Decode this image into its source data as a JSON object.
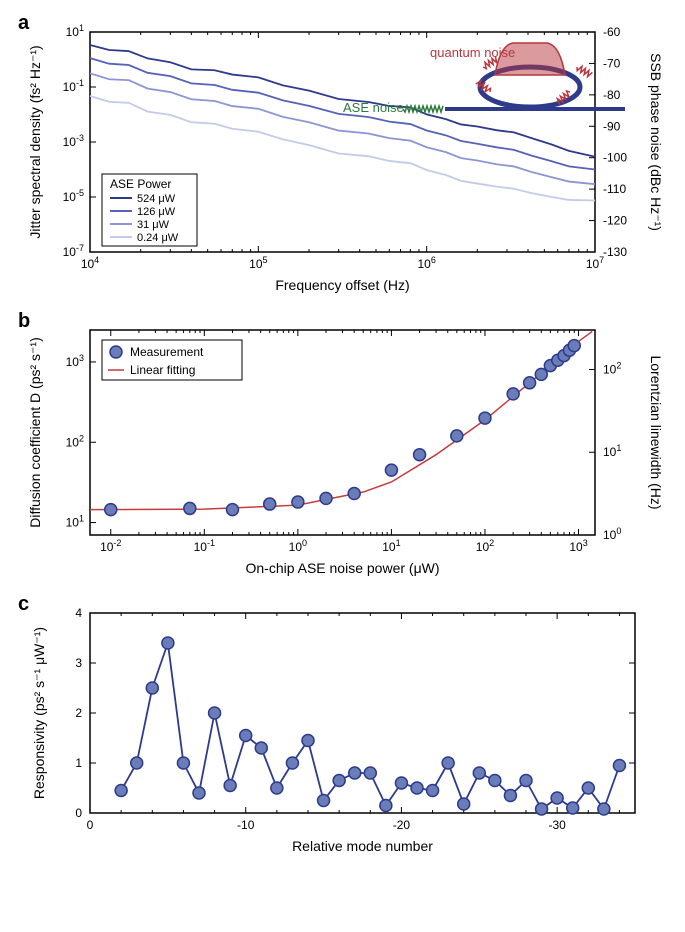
{
  "panel_a": {
    "label": "a",
    "type": "line",
    "xlabel": "Frequency offset (Hz)",
    "ylabel_left": "Jitter spectral density (fs² Hz⁻¹)",
    "ylabel_right": "SSB phase noise  (dBc Hz⁻¹)",
    "xlim": [
      10000.0,
      10000000.0
    ],
    "ylim_left": [
      1e-07,
      10
    ],
    "xscale": "log",
    "yscale": "log",
    "xticks": [
      10000.0,
      100000.0,
      1000000.0,
      10000000.0
    ],
    "yticks_left": [
      1e-07,
      1e-05,
      0.001,
      0.1,
      10
    ],
    "yticks_right": [
      -130,
      -120,
      -110,
      -100,
      -90,
      -80,
      -70,
      -60
    ],
    "legend_title": "ASE Power",
    "legend_position": "lower-left",
    "series": [
      {
        "label": "524 μW",
        "color": "#2e3a8c",
        "data": [
          [
            10000.0,
            3.0
          ],
          [
            13000.0,
            2.2
          ],
          [
            17000.0,
            1.6
          ],
          [
            22000.0,
            1.2
          ],
          [
            30000.0,
            0.8
          ],
          [
            40000.0,
            0.55
          ],
          [
            55000.0,
            0.38
          ],
          [
            70000.0,
            0.28
          ],
          [
            100000.0,
            0.18
          ],
          [
            140000.0,
            0.12
          ],
          [
            200000.0,
            0.075
          ],
          [
            300000.0,
            0.045
          ],
          [
            450000.0,
            0.028
          ],
          [
            600000.0,
            0.02
          ],
          [
            800000.0,
            0.015
          ],
          [
            1000000.0,
            0.01
          ],
          [
            1300000.0,
            0.007
          ],
          [
            1600000.0,
            0.0052
          ],
          [
            2000000.0,
            0.0038
          ],
          [
            2600000.0,
            0.0026
          ],
          [
            3300000.0,
            0.0019
          ],
          [
            4200000.0,
            0.0013
          ],
          [
            5500000.0,
            0.00085
          ],
          [
            7000000.0,
            0.00055
          ],
          [
            10000000.0,
            0.00032
          ]
        ]
      },
      {
        "label": "126 μW",
        "color": "#5662b8",
        "data": [
          [
            10000.0,
            1.0
          ],
          [
            13000.0,
            0.7
          ],
          [
            17000.0,
            0.5
          ],
          [
            22000.0,
            0.36
          ],
          [
            30000.0,
            0.25
          ],
          [
            40000.0,
            0.17
          ],
          [
            55000.0,
            0.11
          ],
          [
            70000.0,
            0.078
          ],
          [
            100000.0,
            0.05
          ],
          [
            140000.0,
            0.034
          ],
          [
            200000.0,
            0.021
          ],
          [
            300000.0,
            0.013
          ],
          [
            450000.0,
            0.008
          ],
          [
            600000.0,
            0.0054
          ],
          [
            800000.0,
            0.0037
          ],
          [
            1000000.0,
            0.0026
          ],
          [
            1300000.0,
            0.0018
          ],
          [
            1600000.0,
            0.0013
          ],
          [
            2000000.0,
            0.0009
          ],
          [
            2600000.0,
            0.00062
          ],
          [
            3300000.0,
            0.00044
          ],
          [
            4200000.0,
            0.0003
          ],
          [
            5500000.0,
            0.00021
          ],
          [
            7000000.0,
            0.00015
          ],
          [
            10000000.0,
            0.00011
          ]
        ]
      },
      {
        "label": "31 μW",
        "color": "#8c96d4",
        "data": [
          [
            10000.0,
            0.28
          ],
          [
            13000.0,
            0.19
          ],
          [
            17000.0,
            0.14
          ],
          [
            22000.0,
            0.096
          ],
          [
            30000.0,
            0.066
          ],
          [
            40000.0,
            0.045
          ],
          [
            55000.0,
            0.029
          ],
          [
            70000.0,
            0.02
          ],
          [
            100000.0,
            0.013
          ],
          [
            140000.0,
            0.0086
          ],
          [
            200000.0,
            0.0053
          ],
          [
            300000.0,
            0.0032
          ],
          [
            450000.0,
            0.002
          ],
          [
            600000.0,
            0.00135
          ],
          [
            800000.0,
            0.00092
          ],
          [
            1000000.0,
            0.00064
          ],
          [
            1300000.0,
            0.00044
          ],
          [
            1600000.0,
            0.00031
          ],
          [
            2000000.0,
            0.00022
          ],
          [
            2600000.0,
            0.00015
          ],
          [
            3300000.0,
            0.00011
          ],
          [
            4200000.0,
            7.6e-05
          ],
          [
            5500000.0,
            5.5e-05
          ],
          [
            7000000.0,
            4.2e-05
          ],
          [
            10000000.0,
            3.2e-05
          ]
        ]
      },
      {
        "label": "0.24 μW",
        "color": "#c4cae9",
        "data": [
          [
            10000.0,
            0.042
          ],
          [
            13000.0,
            0.029
          ],
          [
            17000.0,
            0.021
          ],
          [
            22000.0,
            0.014
          ],
          [
            30000.0,
            0.0098
          ],
          [
            40000.0,
            0.0066
          ],
          [
            55000.0,
            0.0043
          ],
          [
            70000.0,
            0.003
          ],
          [
            100000.0,
            0.0019
          ],
          [
            140000.0,
            0.0013
          ],
          [
            200000.0,
            0.00078
          ],
          [
            300000.0,
            0.00047
          ],
          [
            450000.0,
            0.0003
          ],
          [
            600000.0,
            0.0002
          ],
          [
            800000.0,
            0.00014
          ],
          [
            1000000.0,
            9.5e-05
          ],
          [
            1300000.0,
            6.5e-05
          ],
          [
            1600000.0,
            4.6e-05
          ],
          [
            2000000.0,
            3.2e-05
          ],
          [
            2600000.0,
            2.3e-05
          ],
          [
            3300000.0,
            1.7e-05
          ],
          [
            4200000.0,
            1.3e-05
          ],
          [
            5500000.0,
            1.05e-05
          ],
          [
            7000000.0,
            9e-06
          ],
          [
            10000000.0,
            8.2e-06
          ]
        ]
      }
    ],
    "inset": {
      "quantum_label": "quantum noise",
      "quantum_color": "#b8373e",
      "ase_label": "ASE noise",
      "ase_color": "#2d7a3e",
      "ring_color": "#2e3a8c",
      "bus_color": "#2e3a8c",
      "bg_color": "#ffffff"
    },
    "axis_color": "#000000",
    "line_width": 1.8
  },
  "panel_b": {
    "label": "b",
    "type": "scatter-line",
    "xlabel": "On-chip ASE noise power (μW)",
    "ylabel_left": "Diffusion coefficient D (ps² s⁻¹)",
    "ylabel_right": "Lorentzian linewidth  (Hz)",
    "xlim": [
      0.006,
      1500.0
    ],
    "ylim_left": [
      7,
      2500
    ],
    "xscale": "log",
    "yscale": "log",
    "xticks": [
      0.01,
      0.1,
      1,
      10,
      100,
      1000
    ],
    "yticks_left": [
      10,
      100,
      1000
    ],
    "yticks_right": [
      1,
      10,
      100
    ],
    "legend_items": [
      {
        "label": "Measurement",
        "type": "marker",
        "color": "#6b7db8",
        "stroke": "#2e3a8c"
      },
      {
        "label": "Linear fitting",
        "type": "line",
        "color": "#c43c3c"
      }
    ],
    "marker_size": 6,
    "marker_fill": "#6b7db8",
    "marker_stroke": "#2e3a8c",
    "fit_color": "#c43c3c",
    "data_points": [
      [
        0.01,
        14.5
      ],
      [
        0.07,
        15
      ],
      [
        0.2,
        14.5
      ],
      [
        0.5,
        17
      ],
      [
        1,
        18
      ],
      [
        2,
        20
      ],
      [
        4,
        23
      ],
      [
        10,
        45
      ],
      [
        20,
        70
      ],
      [
        50,
        120
      ],
      [
        100,
        200
      ],
      [
        200,
        400
      ],
      [
        300,
        550
      ],
      [
        400,
        700
      ],
      [
        500,
        900
      ],
      [
        600,
        1050
      ],
      [
        700,
        1200
      ],
      [
        800,
        1400
      ],
      [
        900,
        1600
      ]
    ],
    "fit_line": [
      [
        0.006,
        14.5
      ],
      [
        0.1,
        14.7
      ],
      [
        1,
        16.5
      ],
      [
        5,
        24
      ],
      [
        10,
        32
      ],
      [
        30,
        70
      ],
      [
        100,
        190
      ],
      [
        300,
        550
      ],
      [
        1000,
        1800
      ],
      [
        1400,
        2400
      ]
    ]
  },
  "panel_c": {
    "label": "c",
    "type": "line-marker",
    "xlabel": "Relative mode number",
    "ylabel": "Responsivity (ps² s⁻¹ μW⁻¹)",
    "xlim": [
      0,
      -35
    ],
    "ylim": [
      0,
      4
    ],
    "xticks": [
      0,
      -10,
      -20,
      -30
    ],
    "yticks": [
      0,
      1,
      2,
      3,
      4
    ],
    "marker_fill": "#6b7db8",
    "marker_stroke": "#2e3a8c",
    "line_color": "#2e3a8c",
    "marker_size": 6,
    "data": [
      [
        -2,
        0.45
      ],
      [
        -3,
        1.0
      ],
      [
        -4,
        2.5
      ],
      [
        -5,
        3.4
      ],
      [
        -6,
        1.0
      ],
      [
        -7,
        0.4
      ],
      [
        -8,
        2.0
      ],
      [
        -9,
        0.55
      ],
      [
        -10,
        1.55
      ],
      [
        -11,
        1.3
      ],
      [
        -12,
        0.5
      ],
      [
        -13,
        1.0
      ],
      [
        -14,
        1.45
      ],
      [
        -15,
        0.25
      ],
      [
        -16,
        0.65
      ],
      [
        -17,
        0.8
      ],
      [
        -18,
        0.8
      ],
      [
        -19,
        0.15
      ],
      [
        -20,
        0.6
      ],
      [
        -21,
        0.5
      ],
      [
        -22,
        0.45
      ],
      [
        -23,
        1.0
      ],
      [
        -24,
        0.18
      ],
      [
        -25,
        0.8
      ],
      [
        -26,
        0.65
      ],
      [
        -27,
        0.35
      ],
      [
        -28,
        0.65
      ],
      [
        -29,
        0.08
      ],
      [
        -30,
        0.3
      ],
      [
        -31,
        0.1
      ],
      [
        -32,
        0.5
      ],
      [
        -33,
        0.08
      ],
      [
        -34,
        0.95
      ]
    ]
  },
  "colors": {
    "axis": "#000000",
    "background": "#ffffff"
  },
  "fontsize": {
    "axis_label": 14,
    "tick": 12,
    "legend": 12,
    "panel_label": 20
  }
}
